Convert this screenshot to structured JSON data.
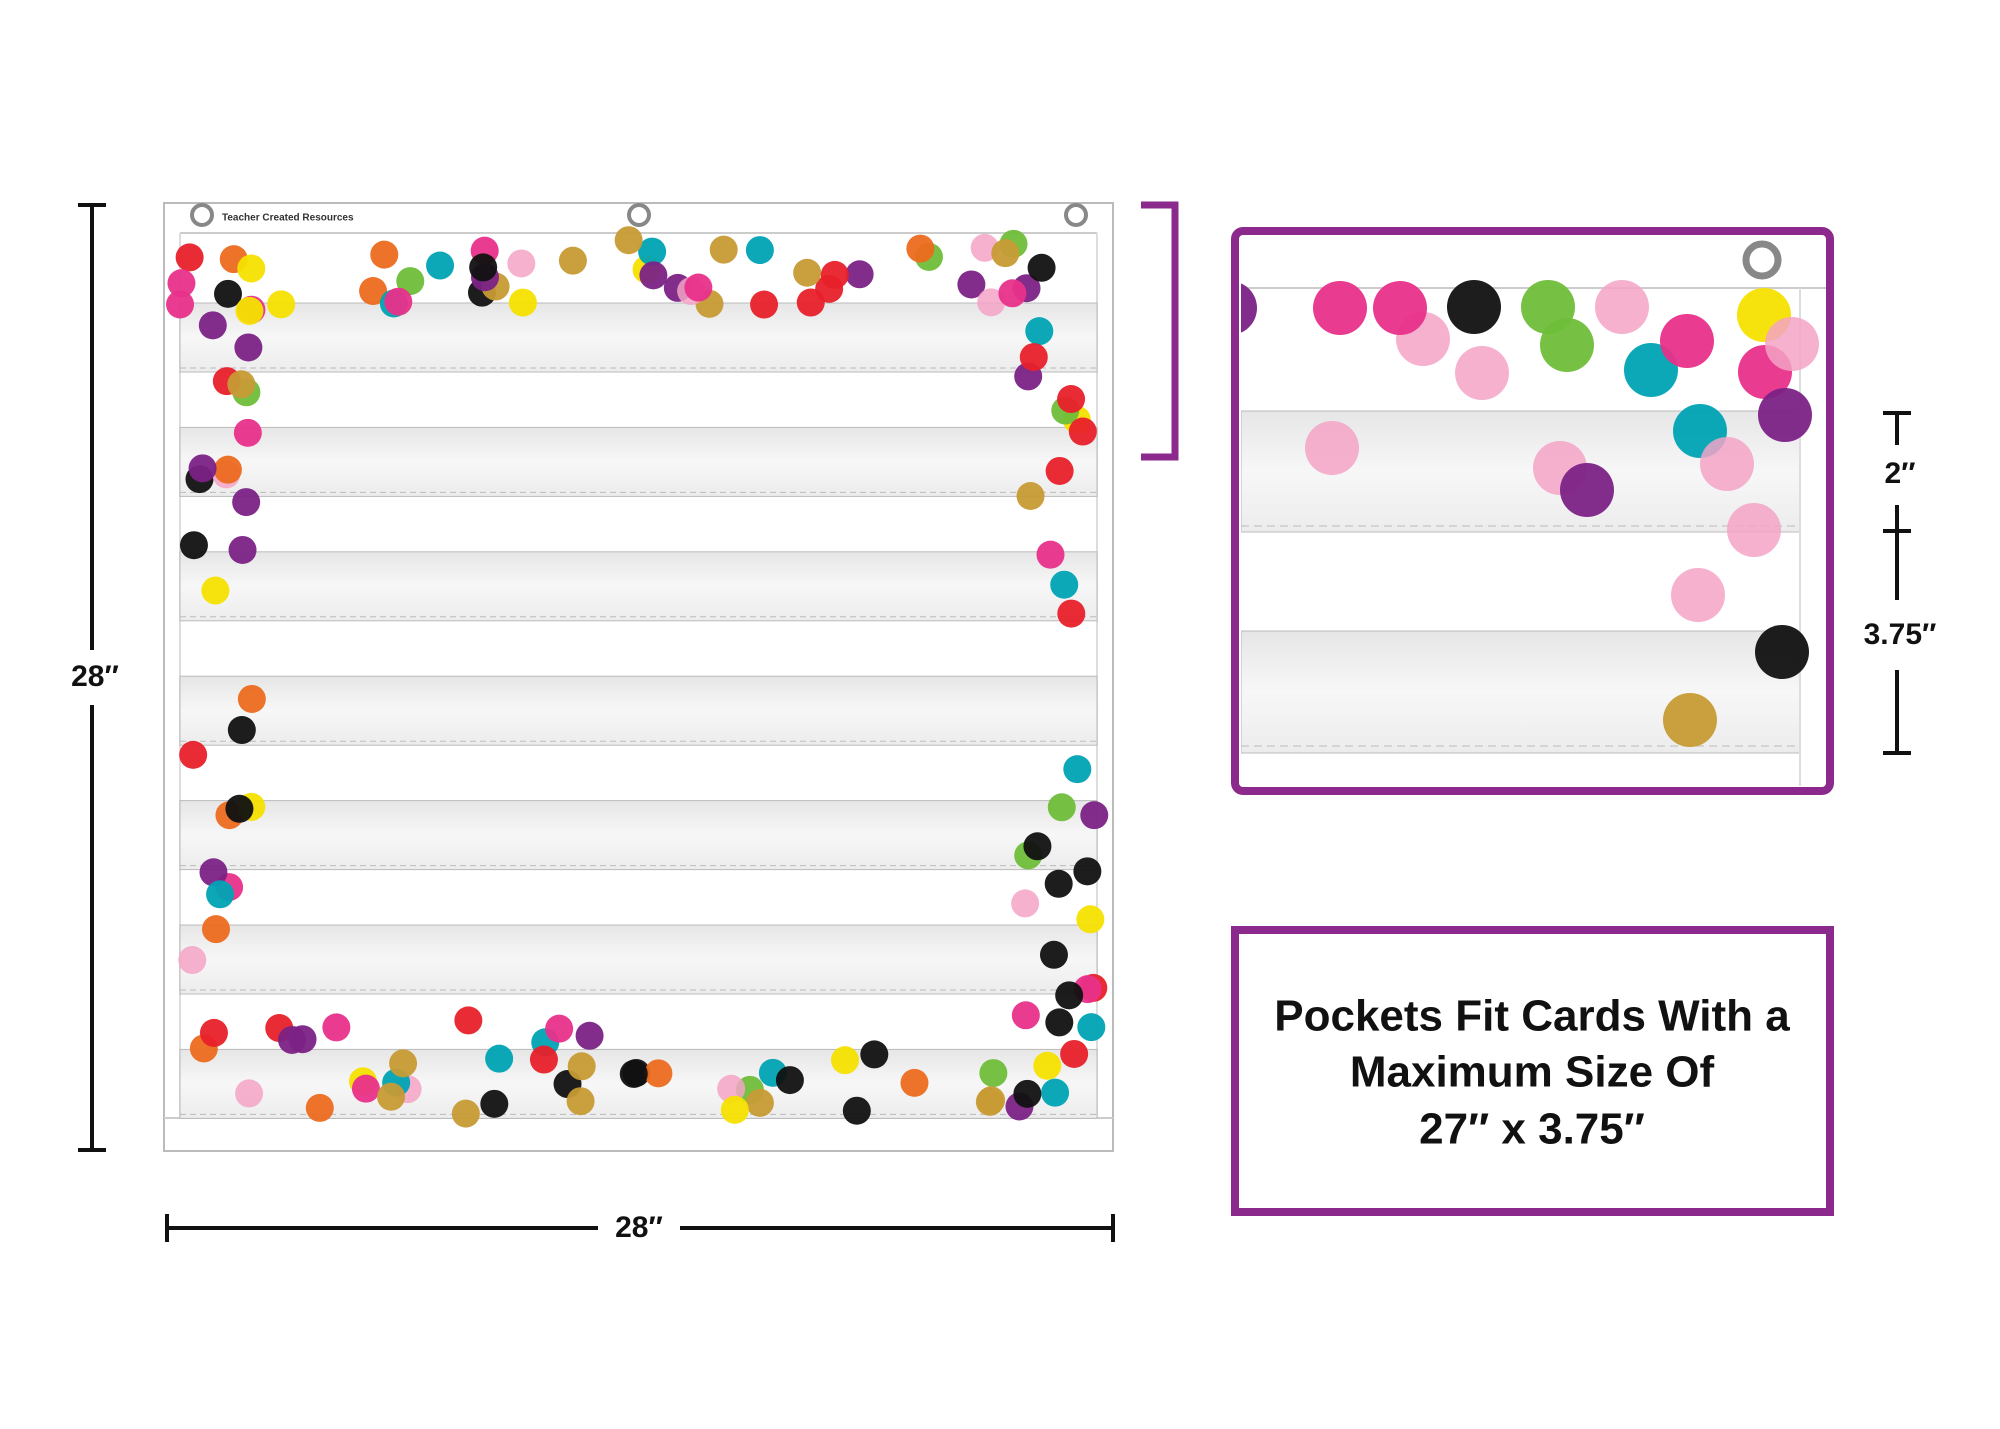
{
  "header": {
    "brand": "Teacher Created Resources"
  },
  "dimensions": {
    "height": "28″",
    "width": "28″",
    "pocket_gap": "2″",
    "pocket_height": "3.75″"
  },
  "callout": {
    "lines": [
      "Pockets Fit Cards With a",
      "Maximum Size Of",
      "27″ x 3.75″"
    ]
  }
}
